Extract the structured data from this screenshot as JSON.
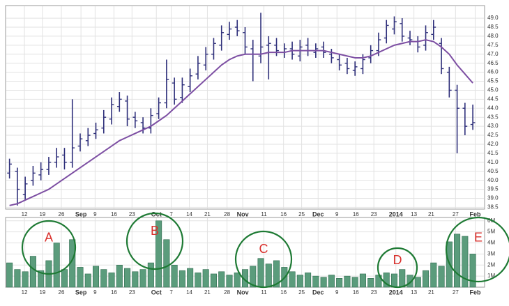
{
  "chart_data": [
    {
      "type": "ohlc",
      "color": "#2e2f7a",
      "grid": true,
      "x": [
        0,
        1,
        2,
        3,
        4,
        5,
        6,
        7,
        8,
        9,
        10,
        11,
        12,
        13,
        14,
        15,
        16,
        17,
        18,
        19,
        20,
        21,
        22,
        23,
        24,
        25,
        26,
        27,
        28,
        29,
        30,
        31,
        32,
        33,
        34,
        35,
        36,
        37,
        38,
        39,
        40,
        41,
        42,
        43,
        44,
        45,
        46,
        47,
        48,
        49,
        50,
        51,
        52,
        53,
        54,
        55,
        56,
        57,
        58,
        59
      ],
      "open": [
        40.4,
        40.5,
        39.2,
        40.0,
        40.3,
        40.6,
        41.0,
        41.4,
        41.0,
        41.9,
        42.2,
        42.6,
        42.9,
        43.4,
        44.1,
        44.4,
        43.5,
        43.2,
        42.9,
        43.7,
        44.3,
        45.4,
        44.6,
        45.2,
        45.9,
        46.4,
        47.0,
        47.5,
        48.1,
        48.5,
        48.2,
        47.3,
        46.9,
        47.5,
        47.5,
        47.1,
        47.3,
        46.9,
        47.5,
        47.1,
        47.4,
        47.0,
        46.7,
        46.5,
        46.1,
        46.2,
        46.8,
        47.2,
        47.9,
        48.4,
        48.7,
        47.9,
        47.7,
        47.5,
        48.1,
        47.6,
        46.0,
        45.0,
        44.0,
        43.1
      ],
      "high": [
        41.2,
        40.7,
        40.2,
        40.8,
        41.0,
        41.3,
        41.8,
        41.8,
        44.5,
        42.6,
        42.9,
        43.2,
        43.9,
        44.6,
        44.9,
        44.7,
        43.8,
        43.5,
        44.0,
        44.6,
        46.7,
        45.7,
        45.7,
        46.2,
        46.9,
        47.4,
        47.9,
        48.6,
        48.8,
        48.9,
        48.5,
        47.8,
        49.3,
        48.0,
        47.9,
        47.6,
        47.7,
        47.8,
        47.9,
        47.6,
        47.7,
        47.3,
        47.0,
        46.8,
        46.6,
        47.0,
        47.5,
        48.2,
        48.9,
        49.1,
        49.0,
        48.3,
        48.0,
        48.6,
        48.9,
        47.9,
        46.3,
        45.3,
        44.3,
        44.2
      ],
      "low": [
        40.1,
        38.6,
        38.9,
        39.7,
        40.0,
        40.3,
        40.7,
        40.6,
        40.7,
        41.6,
        41.9,
        42.3,
        42.6,
        43.1,
        43.8,
        43.0,
        42.9,
        42.6,
        42.6,
        43.4,
        44.0,
        44.2,
        44.3,
        44.9,
        45.6,
        46.1,
        46.7,
        47.2,
        47.8,
        48.0,
        47.0,
        45.5,
        46.5,
        45.6,
        46.9,
        46.8,
        46.7,
        46.6,
        46.9,
        46.8,
        46.8,
        46.5,
        46.1,
        45.9,
        45.8,
        45.9,
        46.5,
        46.9,
        47.6,
        48.1,
        47.7,
        47.5,
        47.1,
        47.2,
        47.8,
        45.9,
        44.6,
        41.5,
        42.5,
        42.8
      ],
      "close": [
        40.9,
        39.5,
        39.8,
        40.4,
        40.6,
        41.0,
        41.3,
        41.0,
        41.8,
        42.3,
        42.5,
        42.8,
        43.5,
        44.2,
        44.5,
        43.4,
        43.3,
        42.9,
        43.6,
        44.3,
        45.6,
        44.5,
        45.3,
        45.8,
        46.5,
        47.0,
        47.6,
        48.2,
        48.4,
        48.3,
        47.4,
        47.0,
        47.4,
        47.6,
        47.2,
        47.3,
        47.0,
        47.4,
        47.2,
        47.3,
        47.1,
        46.8,
        46.4,
        46.2,
        46.3,
        46.7,
        47.2,
        47.8,
        48.6,
        48.8,
        48.0,
        47.8,
        47.4,
        48.2,
        48.5,
        46.2,
        45.0,
        44.0,
        43.0,
        43.2
      ],
      "moving_average": {
        "color": "#7d4fa3",
        "values": [
          38.6,
          38.7,
          38.9,
          39.1,
          39.3,
          39.5,
          39.8,
          40.1,
          40.4,
          40.7,
          41.0,
          41.3,
          41.6,
          41.9,
          42.2,
          42.4,
          42.6,
          42.8,
          43.0,
          43.3,
          43.6,
          44.0,
          44.4,
          44.8,
          45.2,
          45.6,
          46.0,
          46.4,
          46.7,
          46.9,
          47.0,
          47.0,
          47.0,
          47.1,
          47.1,
          47.1,
          47.2,
          47.2,
          47.2,
          47.2,
          47.2,
          47.1,
          47.0,
          46.9,
          46.8,
          46.8,
          46.9,
          47.1,
          47.3,
          47.5,
          47.6,
          47.7,
          47.7,
          47.8,
          47.7,
          47.4,
          47.0,
          46.4,
          45.9,
          45.4
        ]
      },
      "xlim": [
        -0.5,
        60.5
      ],
      "xticks": [
        {
          "value": 1.9,
          "label": "12"
        },
        {
          "value": 4.2,
          "label": "19"
        },
        {
          "value": 6.6,
          "label": "26"
        },
        {
          "value": 9.1,
          "label": "Sep"
        },
        {
          "value": 10.9,
          "label": "9"
        },
        {
          "value": 13.3,
          "label": "16"
        },
        {
          "value": 15.6,
          "label": "23"
        },
        {
          "value": 18.7,
          "label": "Oct"
        },
        {
          "value": 20.6,
          "label": "7"
        },
        {
          "value": 22.9,
          "label": "14"
        },
        {
          "value": 25.2,
          "label": "21"
        },
        {
          "value": 27.7,
          "label": "28"
        },
        {
          "value": 29.7,
          "label": "Nov"
        },
        {
          "value": 32.4,
          "label": "11"
        },
        {
          "value": 34.9,
          "label": "16"
        },
        {
          "value": 37.2,
          "label": "25"
        },
        {
          "value": 39.3,
          "label": "Dec"
        },
        {
          "value": 41.7,
          "label": "9"
        },
        {
          "value": 44.1,
          "label": "16"
        },
        {
          "value": 46.4,
          "label": "23"
        },
        {
          "value": 49.2,
          "label": "2014"
        },
        {
          "value": 51.5,
          "label": "13"
        },
        {
          "value": 53.7,
          "label": "21"
        },
        {
          "value": 56.8,
          "label": "27"
        },
        {
          "value": 59.3,
          "label": "Feb"
        }
      ],
      "ylim": [
        38.4,
        49.7
      ],
      "yticks": [
        38.5,
        {
          "value": 39,
          "label": "39.0"
        },
        39.5,
        {
          "value": 40,
          "label": "40.0"
        },
        40.5,
        {
          "value": 41,
          "label": "41.0"
        },
        41.5,
        {
          "value": 42,
          "label": "42.0"
        },
        42.5,
        {
          "value": 43,
          "label": "43.0"
        },
        43.5,
        {
          "value": 44,
          "label": "44.0"
        },
        44.5,
        {
          "value": 45,
          "label": "45.0"
        },
        45.5,
        {
          "value": 46,
          "label": "46.0"
        },
        46.5,
        {
          "value": 47,
          "label": "47.0"
        },
        47.5,
        {
          "value": 48,
          "label": "48.0"
        },
        48.5,
        {
          "value": 49,
          "label": "49.0"
        }
      ]
    },
    {
      "type": "bar",
      "color": "#5b9c7c",
      "grid": true,
      "x": [
        0,
        1,
        2,
        3,
        4,
        5,
        6,
        7,
        8,
        9,
        10,
        11,
        12,
        13,
        14,
        15,
        16,
        17,
        18,
        19,
        20,
        21,
        22,
        23,
        24,
        25,
        26,
        27,
        28,
        29,
        30,
        31,
        32,
        33,
        34,
        35,
        36,
        37,
        38,
        39,
        40,
        41,
        42,
        43,
        44,
        45,
        46,
        47,
        48,
        49,
        50,
        51,
        52,
        53,
        54,
        55,
        56,
        57,
        58,
        59
      ],
      "values": [
        2.2,
        1.6,
        1.4,
        2.8,
        1.5,
        2.4,
        4.0,
        1.6,
        4.3,
        1.8,
        1.2,
        1.9,
        1.6,
        1.3,
        2.0,
        1.7,
        1.4,
        1.6,
        2.2,
        6.0,
        4.3,
        2.0,
        1.5,
        1.7,
        1.3,
        1.6,
        1.2,
        1.4,
        1.1,
        1.3,
        1.6,
        1.9,
        2.6,
        2.1,
        2.4,
        1.8,
        1.4,
        1.1,
        1.3,
        1.0,
        0.9,
        1.1,
        0.8,
        1.0,
        0.9,
        1.2,
        0.8,
        1.1,
        1.3,
        1.2,
        1.6,
        1.1,
        0.9,
        1.5,
        2.2,
        1.9,
        4.1,
        4.8,
        4.6,
        3.0
      ],
      "xlim": [
        -0.5,
        60.5
      ],
      "xticks": [
        {
          "value": 1.9,
          "label": "12"
        },
        {
          "value": 4.2,
          "label": "19"
        },
        {
          "value": 6.6,
          "label": "26"
        },
        {
          "value": 9.1,
          "label": "Sep"
        },
        {
          "value": 10.9,
          "label": "9"
        },
        {
          "value": 13.3,
          "label": "16"
        },
        {
          "value": 15.6,
          "label": "23"
        },
        {
          "value": 18.7,
          "label": "Oct"
        },
        {
          "value": 20.6,
          "label": "7"
        },
        {
          "value": 22.9,
          "label": "14"
        },
        {
          "value": 25.2,
          "label": "21"
        },
        {
          "value": 27.7,
          "label": "28"
        },
        {
          "value": 29.7,
          "label": "Nov"
        },
        {
          "value": 32.4,
          "label": "11"
        },
        {
          "value": 34.9,
          "label": "16"
        },
        {
          "value": 37.2,
          "label": "25"
        },
        {
          "value": 39.3,
          "label": "Dec"
        },
        {
          "value": 41.7,
          "label": "9"
        },
        {
          "value": 44.1,
          "label": "16"
        },
        {
          "value": 46.4,
          "label": "23"
        },
        {
          "value": 49.2,
          "label": "2014"
        },
        {
          "value": 51.5,
          "label": "13"
        },
        {
          "value": 53.7,
          "label": "21"
        },
        {
          "value": 56.8,
          "label": "27"
        },
        {
          "value": 59.3,
          "label": "Feb"
        }
      ],
      "ylim": [
        0,
        6.3
      ],
      "yticks": [
        {
          "value": 1,
          "label": "1M"
        },
        {
          "value": 2,
          "label": "2M"
        },
        {
          "value": 3,
          "label": "3M"
        },
        {
          "value": 4,
          "label": "4M"
        },
        {
          "value": 5,
          "label": "5M"
        },
        {
          "value": 6,
          "label": "6M"
        }
      ],
      "annotations": [
        "A",
        "B",
        "C",
        "D",
        "E"
      ]
    }
  ]
}
